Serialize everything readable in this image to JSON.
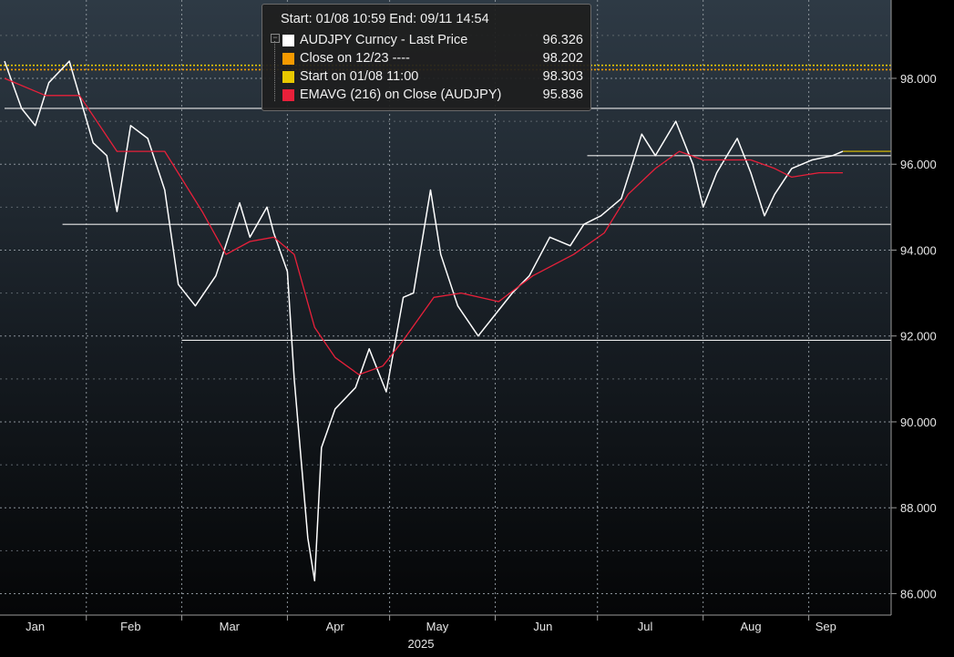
{
  "chart_data": {
    "type": "line",
    "year_label": "2025",
    "x_tick_labels": [
      "Jan",
      "Feb",
      "Mar",
      "Apr",
      "May",
      "Jun",
      "Jul",
      "Aug",
      "Sep"
    ],
    "y_tick_labels": [
      "86.000",
      "88.000",
      "90.000",
      "92.000",
      "94.000",
      "96.000",
      "98.000"
    ],
    "y_ticks": [
      86,
      88,
      90,
      92,
      94,
      96,
      98
    ],
    "ylim": [
      85.5,
      99.4
    ],
    "legend_header": "Start: 01/08 10:59 End: 09/11 14:54",
    "series": [
      {
        "name": "AUDJPY Curncy - Last Price",
        "value_label": "96.326",
        "color": "#ffffff",
        "points": [
          [
            "01-08",
            98.4
          ],
          [
            "01-13",
            97.3
          ],
          [
            "01-17",
            96.9
          ],
          [
            "01-21",
            97.9
          ],
          [
            "01-27",
            98.4
          ],
          [
            "02-03",
            96.5
          ],
          [
            "02-07",
            96.2
          ],
          [
            "02-10",
            94.9
          ],
          [
            "02-14",
            96.9
          ],
          [
            "02-19",
            96.6
          ],
          [
            "02-24",
            95.4
          ],
          [
            "02-28",
            93.2
          ],
          [
            "03-05",
            92.7
          ],
          [
            "03-11",
            93.4
          ],
          [
            "03-18",
            95.1
          ],
          [
            "03-21",
            94.3
          ],
          [
            "03-26",
            95.0
          ],
          [
            "03-28",
            94.4
          ],
          [
            "04-01",
            93.5
          ],
          [
            "04-03",
            91.0
          ],
          [
            "04-07",
            87.3
          ],
          [
            "04-09",
            86.3
          ],
          [
            "04-11",
            89.4
          ],
          [
            "04-15",
            90.3
          ],
          [
            "04-21",
            90.8
          ],
          [
            "04-25",
            91.7
          ],
          [
            "04-30",
            90.7
          ],
          [
            "05-05",
            92.9
          ],
          [
            "05-08",
            93.0
          ],
          [
            "05-13",
            95.4
          ],
          [
            "05-16",
            93.9
          ],
          [
            "05-21",
            92.7
          ],
          [
            "05-27",
            92.0
          ],
          [
            "06-02",
            92.6
          ],
          [
            "06-06",
            93.0
          ],
          [
            "06-11",
            93.4
          ],
          [
            "06-17",
            94.3
          ],
          [
            "06-23",
            94.1
          ],
          [
            "06-27",
            94.6
          ],
          [
            "07-02",
            94.8
          ],
          [
            "07-08",
            95.2
          ],
          [
            "07-14",
            96.7
          ],
          [
            "07-18",
            96.2
          ],
          [
            "07-24",
            97.0
          ],
          [
            "07-29",
            96.0
          ],
          [
            "08-01",
            95.0
          ],
          [
            "08-05",
            95.8
          ],
          [
            "08-11",
            96.6
          ],
          [
            "08-15",
            95.8
          ],
          [
            "08-19",
            94.8
          ],
          [
            "08-22",
            95.3
          ],
          [
            "08-27",
            95.9
          ],
          [
            "09-02",
            96.1
          ],
          [
            "09-08",
            96.2
          ],
          [
            "09-11",
            96.3
          ]
        ]
      },
      {
        "name": "EMAVG (216)  on Close (AUDJPY)",
        "value_label": "95.836",
        "color": "#e8203a",
        "points": [
          [
            "01-08",
            98.0
          ],
          [
            "01-20",
            97.6
          ],
          [
            "01-30",
            97.6
          ],
          [
            "02-10",
            96.3
          ],
          [
            "02-24",
            96.3
          ],
          [
            "03-07",
            94.9
          ],
          [
            "03-14",
            93.9
          ],
          [
            "03-21",
            94.2
          ],
          [
            "03-28",
            94.3
          ],
          [
            "04-03",
            93.9
          ],
          [
            "04-09",
            92.2
          ],
          [
            "04-15",
            91.5
          ],
          [
            "04-22",
            91.1
          ],
          [
            "04-29",
            91.3
          ],
          [
            "05-05",
            91.9
          ],
          [
            "05-14",
            92.9
          ],
          [
            "05-22",
            93.0
          ],
          [
            "06-02",
            92.8
          ],
          [
            "06-12",
            93.4
          ],
          [
            "06-24",
            93.9
          ],
          [
            "07-03",
            94.4
          ],
          [
            "07-10",
            95.3
          ],
          [
            "07-18",
            95.9
          ],
          [
            "07-25",
            96.3
          ],
          [
            "08-01",
            96.1
          ],
          [
            "08-08",
            96.1
          ],
          [
            "08-15",
            96.1
          ],
          [
            "08-22",
            95.9
          ],
          [
            "08-27",
            95.7
          ],
          [
            "09-04",
            95.8
          ],
          [
            "09-11",
            95.8
          ]
        ]
      }
    ],
    "reference_lines": [
      {
        "name": "Close on 12/23 ----",
        "value_label": "98.202",
        "color": "#f59a00",
        "value": 98.202
      },
      {
        "name": "Start on 01/08 11:00",
        "value_label": "98.303",
        "color": "#e8c800",
        "value": 98.303
      }
    ],
    "support_resistance_levels": [
      97.3,
      96.2,
      94.6,
      91.9
    ]
  }
}
